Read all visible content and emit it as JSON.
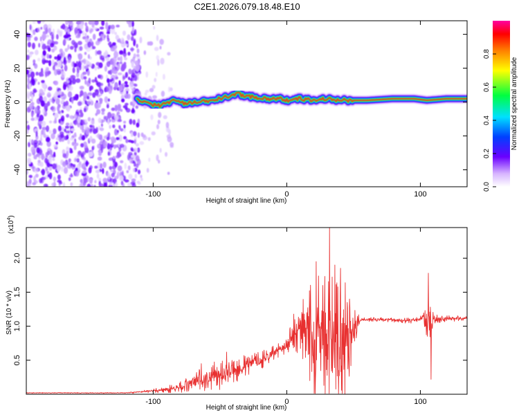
{
  "title": "C2E1.2026.079.18.48.E10",
  "chart_data": [
    {
      "type": "heatmap",
      "name": "spectrogram",
      "xlabel": "Height of straight line (km)",
      "ylabel": "Frequency (Hz)",
      "xlim": [
        -195,
        135
      ],
      "ylim": [
        -50,
        48
      ],
      "x_ticks": [
        -100,
        0,
        100
      ],
      "x_tick_labels": [
        "-100",
        "0",
        "100"
      ],
      "y_ticks": [
        -40,
        -20,
        0,
        20,
        40
      ],
      "y_tick_labels": [
        "-40",
        "-20",
        "0",
        "20",
        "40"
      ],
      "noise_region_x": [
        -195,
        -86
      ],
      "signal_onset_x": -112,
      "ridge": {
        "x": [
          -112,
          -105,
          -95,
          -85,
          -75,
          -65,
          -55,
          -45,
          -38,
          -32,
          -25,
          -15,
          -5,
          0,
          10,
          20,
          30,
          40,
          50,
          60,
          80,
          95,
          105,
          120,
          135
        ],
        "freq": [
          2,
          -1,
          -2,
          1,
          -1,
          0,
          1,
          3,
          5,
          4,
          3,
          2,
          2,
          1,
          2,
          1,
          2,
          1,
          1,
          1,
          2,
          2,
          1,
          2,
          2
        ]
      },
      "colorbar": {
        "label": "Normalized spectral amplitude",
        "range": [
          0,
          1
        ],
        "ticks": [
          0.0,
          0.2,
          0.4,
          0.6,
          0.8
        ],
        "tick_labels": [
          "0.0",
          "0.2",
          "0.4",
          "0.6",
          "0.8"
        ]
      }
    },
    {
      "type": "line",
      "name": "snr-plot",
      "xlabel": "Height of straight line (km)",
      "ylabel": "SNR (10 * v/v)",
      "scale_label": "(x10",
      "scale_exponent": "4",
      "scale_close": ")",
      "xlim": [
        -195,
        135
      ],
      "ylim": [
        0,
        2.45
      ],
      "x_ticks": [
        -100,
        0,
        100
      ],
      "x_tick_labels": [
        "-100",
        "0",
        "100"
      ],
      "y_ticks": [
        0.5,
        1.0,
        1.5,
        2.0
      ],
      "y_tick_labels": [
        "0.5",
        "1.0",
        "1.5",
        "2.0"
      ],
      "color": "#e83030",
      "series": {
        "x": [
          -195,
          -120,
          -100,
          -90,
          -80,
          -70,
          -60,
          -50,
          -40,
          -30,
          -20,
          -10,
          0,
          5,
          10,
          20,
          30,
          40,
          50,
          55,
          70,
          90,
          100,
          105,
          110,
          135
        ],
        "mean": [
          0.02,
          0.02,
          0.05,
          0.07,
          0.1,
          0.18,
          0.25,
          0.28,
          0.35,
          0.42,
          0.5,
          0.6,
          0.72,
          0.9,
          1.0,
          0.85,
          0.8,
          0.75,
          0.9,
          1.1,
          1.1,
          1.08,
          1.1,
          1.1,
          1.1,
          1.12
        ],
        "spread": [
          0.005,
          0.005,
          0.02,
          0.04,
          0.06,
          0.12,
          0.14,
          0.16,
          0.14,
          0.12,
          0.1,
          0.08,
          0.08,
          0.2,
          0.35,
          0.7,
          0.9,
          0.8,
          0.3,
          0.03,
          0.02,
          0.03,
          0.03,
          0.3,
          0.05,
          0.02
        ]
      },
      "spikes": [
        {
          "x": -64,
          "y": 0.45
        },
        {
          "x": -45,
          "y": 0.62
        },
        {
          "x": 15,
          "y": 1.2
        },
        {
          "x": 22,
          "y": 1.95
        },
        {
          "x": 27,
          "y": 1.6
        },
        {
          "x": 32,
          "y": 2.45
        },
        {
          "x": 36,
          "y": 1.9
        },
        {
          "x": 40,
          "y": 1.45
        },
        {
          "x": 47,
          "y": 1.4
        },
        {
          "x": 106,
          "y": 1.78
        },
        {
          "x": 108,
          "y": 0.22
        }
      ]
    }
  ]
}
